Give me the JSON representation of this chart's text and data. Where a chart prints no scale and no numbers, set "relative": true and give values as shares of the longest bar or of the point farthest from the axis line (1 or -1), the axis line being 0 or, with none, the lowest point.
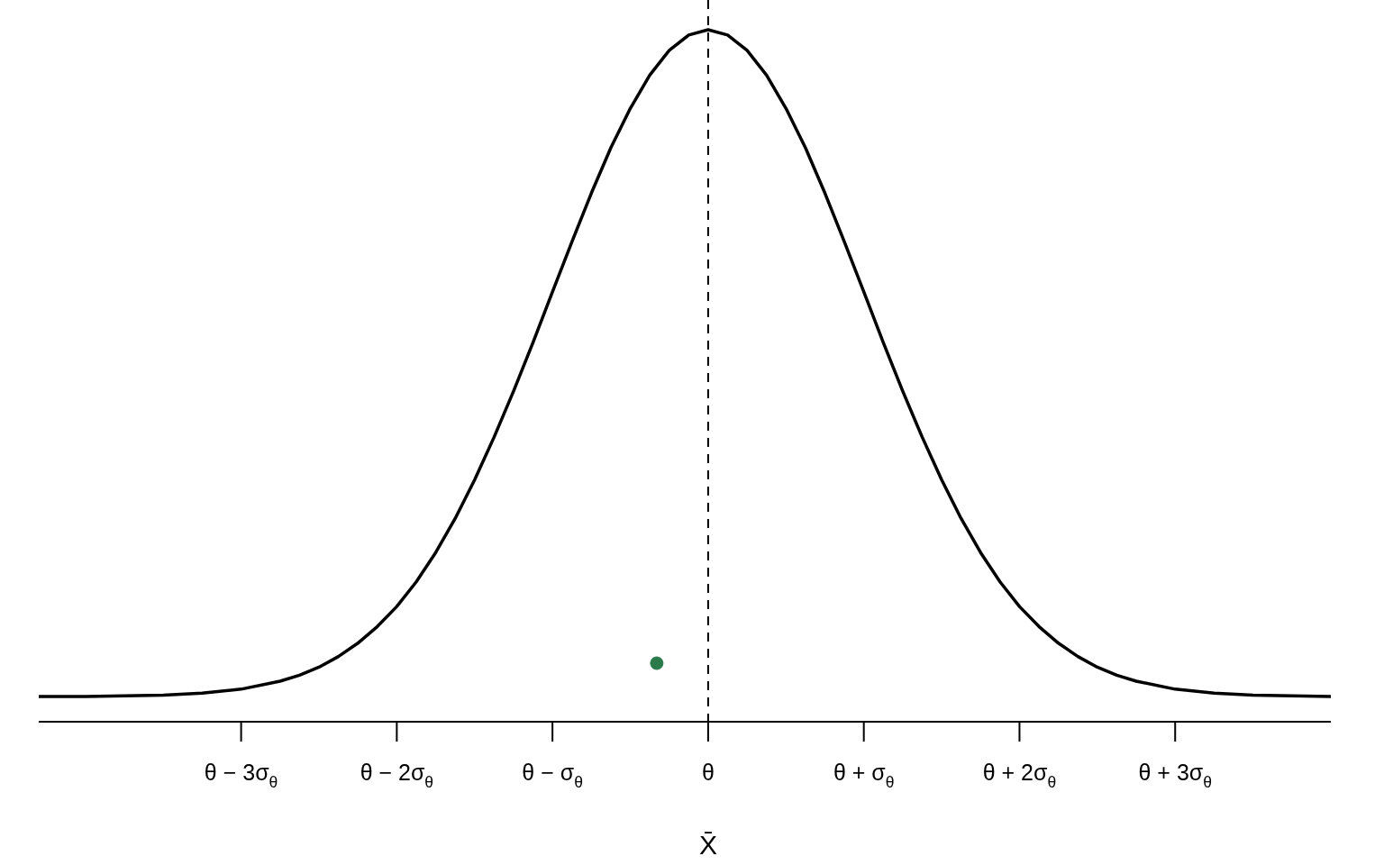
{
  "chart_data": {
    "type": "line",
    "relative": true,
    "xlabel": "X̄",
    "xlim": [
      -4.3,
      4
    ],
    "xticks": [
      {
        "value": -3,
        "label": "θ − 3σ$_{θ}$"
      },
      {
        "value": -2,
        "label": "θ − 2σ$_{θ}$"
      },
      {
        "value": -1,
        "label": "θ − σ$_{θ}$"
      },
      {
        "value": 0,
        "label": "θ"
      },
      {
        "value": 1,
        "label": "θ + σ$_{θ}$"
      },
      {
        "value": 2,
        "label": "θ + 2σ$_{θ}$"
      },
      {
        "value": 3,
        "label": "θ + 3σ$_{θ}$"
      }
    ],
    "series": [
      {
        "color": "#000000",
        "marker": "none",
        "x": [
          -4.3,
          -4,
          -3.75,
          -3.5,
          -3.25,
          -3,
          -2.75,
          -2.625,
          -2.5,
          -2.375,
          -2.25,
          -2.125,
          -2,
          -1.875,
          -1.75,
          -1.625,
          -1.5,
          -1.375,
          -1.25,
          -1.125,
          -1,
          -0.875,
          -0.75,
          -0.625,
          -0.5,
          -0.375,
          -0.25,
          -0.125,
          0,
          0.125,
          0.25,
          0.375,
          0.5,
          0.625,
          0.75,
          0.875,
          1,
          1.125,
          1.25,
          1.375,
          1.5,
          1.625,
          1.75,
          1.875,
          2,
          2.125,
          2.25,
          2.375,
          2.5,
          2.625,
          2.75,
          3,
          3.25,
          3.5,
          3.75,
          4
        ],
        "values": [
          0,
          0,
          0.001,
          0.002,
          0.005,
          0.011,
          0.023,
          0.032,
          0.044,
          0.06,
          0.08,
          0.105,
          0.135,
          0.172,
          0.216,
          0.267,
          0.325,
          0.389,
          0.458,
          0.531,
          0.607,
          0.682,
          0.755,
          0.823,
          0.882,
          0.932,
          0.969,
          0.992,
          1,
          0.992,
          0.969,
          0.932,
          0.882,
          0.823,
          0.755,
          0.682,
          0.607,
          0.531,
          0.458,
          0.389,
          0.325,
          0.267,
          0.216,
          0.172,
          0.135,
          0.105,
          0.08,
          0.06,
          0.044,
          0.032,
          0.023,
          0.011,
          0.005,
          0.002,
          0.001,
          0
        ]
      },
      {
        "type": "scatter",
        "color": "#2a7a4a",
        "marker": "circle",
        "x": [
          -0.33
        ],
        "values": [
          0.05
        ]
      }
    ],
    "ref_lines": [
      {
        "axis": "x",
        "value": 0,
        "color": "#000000",
        "line_style": "dashed"
      }
    ]
  }
}
